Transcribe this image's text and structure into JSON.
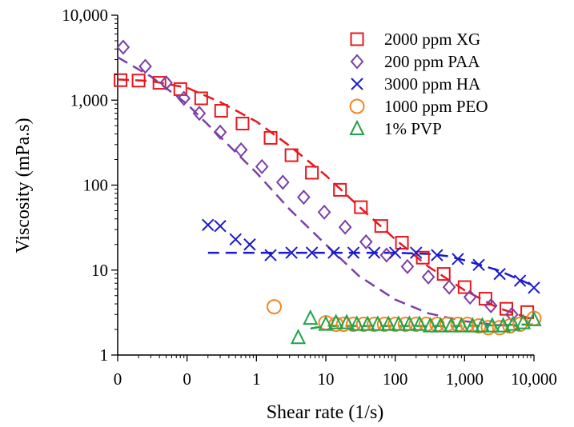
{
  "chart_data": {
    "type": "scatter",
    "title": "",
    "xlabel": "Shear rate (1/s)",
    "ylabel": "Viscosity (mPa.s)",
    "xscale": "log",
    "yscale": "log",
    "xlim": [
      0.01,
      10000
    ],
    "ylim": [
      1,
      10000
    ],
    "x_tick_values": [
      0.01,
      0.1,
      1,
      10,
      100,
      1000,
      10000
    ],
    "x_tick_labels": [
      "0",
      "0",
      "1",
      "10",
      "100",
      "1,000",
      "10,000"
    ],
    "y_tick_values": [
      1,
      10,
      100,
      1000,
      10000
    ],
    "y_tick_labels": [
      "1",
      "10",
      "100",
      "1,000",
      "10,000"
    ],
    "grid": false,
    "legend_position": "top-right",
    "series": [
      {
        "name": "2000 ppm XG",
        "marker": "square",
        "color": "#e8171d",
        "x": [
          0.011,
          0.02,
          0.04,
          0.08,
          0.16,
          0.31,
          0.63,
          1.6,
          3.2,
          6.3,
          16,
          32,
          63,
          125,
          250,
          500,
          1000,
          2000,
          4000,
          8000
        ],
        "y": [
          1720,
          1700,
          1600,
          1350,
          1050,
          750,
          530,
          360,
          225,
          140,
          88,
          55,
          33,
          21,
          14,
          9,
          6.3,
          4.6,
          3.5,
          3.2
        ],
        "fit": {
          "x": [
            0.01,
            0.03,
            0.1,
            0.3,
            1,
            3,
            10,
            30,
            100,
            300,
            1000,
            3000,
            10000
          ],
          "y": [
            1750,
            1680,
            1400,
            950,
            560,
            290,
            130,
            56,
            23,
            11,
            5.8,
            3.6,
            2.6
          ]
        }
      },
      {
        "name": "200 ppm PAA",
        "marker": "diamond",
        "color": "#7b3fa6",
        "x": [
          0.012,
          0.025,
          0.05,
          0.09,
          0.15,
          0.3,
          0.6,
          1.2,
          2.4,
          4.8,
          9.5,
          19,
          38,
          75,
          150,
          300,
          600,
          1200,
          2400,
          4800
        ],
        "y": [
          4200,
          2500,
          1600,
          1050,
          700,
          420,
          260,
          165,
          108,
          72,
          48,
          32,
          21.5,
          15,
          11,
          8.3,
          6.3,
          4.8,
          3.8,
          3.0
        ],
        "fit": {
          "x": [
            0.01,
            0.03,
            0.1,
            0.3,
            1,
            3,
            10,
            30,
            100,
            300,
            1000,
            3000,
            6000
          ],
          "y": [
            3200,
            1900,
            900,
            370,
            140,
            52,
            20,
            8.5,
            4.5,
            3.1,
            2.5,
            2.25,
            2.2
          ]
        }
      },
      {
        "name": "3000 ppm HA",
        "marker": "x",
        "color": "#1a1acc",
        "x": [
          0.2,
          0.3,
          0.5,
          0.8,
          1.6,
          3.2,
          6.3,
          13,
          25,
          50,
          100,
          200,
          400,
          800,
          1600,
          3200,
          6300,
          10000
        ],
        "y": [
          34,
          33,
          23,
          20,
          15,
          16,
          16,
          16,
          16,
          16,
          16,
          16,
          15,
          13.5,
          11.5,
          9,
          7.5,
          6.2
        ],
        "fit": {
          "x": [
            0.2,
            1,
            10,
            100,
            300,
            600,
            1000,
            3000,
            10000
          ],
          "y": [
            16,
            16,
            16,
            16,
            15.5,
            14.5,
            13,
            10,
            6.5
          ]
        }
      },
      {
        "name": "1000 ppm PEO",
        "marker": "circle",
        "color": "#f5851f",
        "x": [
          1.8,
          10,
          14,
          18,
          25,
          35,
          50,
          70,
          100,
          140,
          200,
          280,
          400,
          560,
          800,
          1100,
          1600,
          2200,
          3200,
          4500,
          6300,
          10000
        ],
        "y": [
          3.7,
          2.4,
          2.3,
          2.3,
          2.3,
          2.3,
          2.3,
          2.3,
          2.3,
          2.3,
          2.3,
          2.3,
          2.3,
          2.3,
          2.3,
          2.3,
          2.2,
          2.1,
          2.1,
          2.2,
          2.3,
          2.7
        ],
        "fit": null
      },
      {
        "name": "1% PVP",
        "marker": "triangle",
        "color": "#1fa34a",
        "x": [
          4,
          6,
          10,
          14,
          20,
          28,
          40,
          56,
          80,
          112,
          160,
          224,
          320,
          450,
          640,
          900,
          1300,
          1800,
          2500,
          3600,
          5000,
          7000,
          10000
        ],
        "y": [
          1.6,
          2.7,
          2.3,
          2.4,
          2.4,
          2.3,
          2.3,
          2.3,
          2.3,
          2.3,
          2.3,
          2.3,
          2.2,
          2.2,
          2.2,
          2.2,
          2.2,
          2.2,
          2.2,
          2.2,
          2.3,
          2.4,
          2.6
        ],
        "fit": {
          "x": [
            6,
            10,
            100,
            1000,
            10000
          ],
          "y": [
            2.05,
            2.2,
            2.2,
            2.2,
            2.3
          ]
        }
      }
    ]
  }
}
